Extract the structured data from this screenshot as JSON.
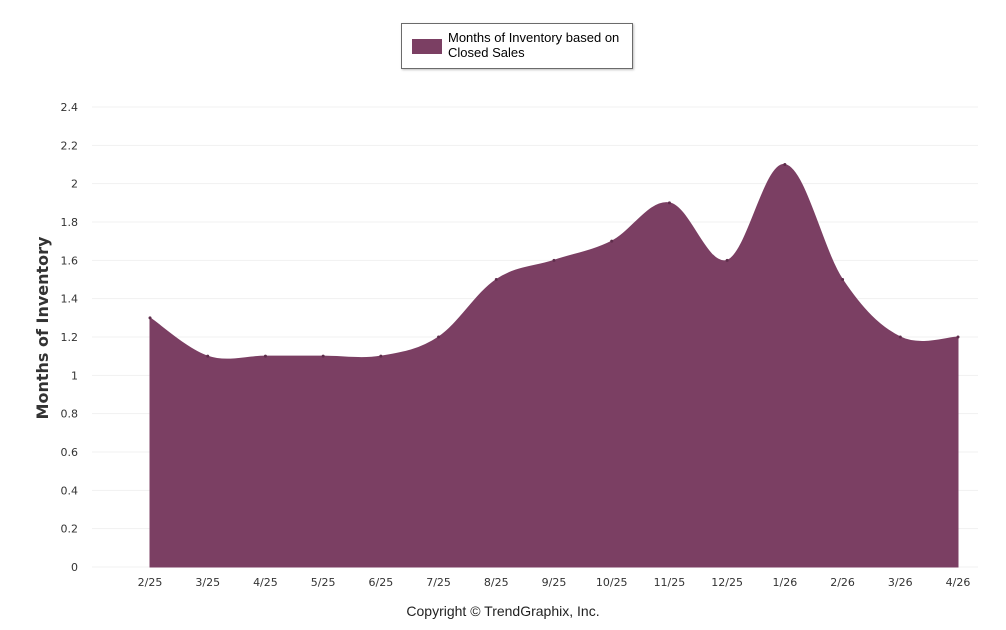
{
  "chart_data": {
    "type": "area",
    "categories": [
      "2/25",
      "3/25",
      "4/25",
      "5/25",
      "6/25",
      "7/25",
      "8/25",
      "9/25",
      "10/25",
      "11/25",
      "12/25",
      "1/26",
      "2/26",
      "3/26",
      "4/26"
    ],
    "series": [
      {
        "name": "Months of Inventory based on Closed Sales",
        "color": "#7b3f63",
        "values": [
          1.3,
          1.1,
          1.1,
          1.1,
          1.1,
          1.2,
          1.5,
          1.6,
          1.7,
          1.9,
          1.6,
          2.1,
          1.5,
          1.2,
          1.2
        ]
      }
    ],
    "ylabel": "Months of Inventory",
    "xlabel": "",
    "ylim": [
      0,
      2.4
    ],
    "yticks": [
      "0",
      "0.2",
      "0.4",
      "0.6",
      "0.8",
      "1",
      "1.2",
      "1.4",
      "1.6",
      "1.8",
      "2",
      "2.2",
      "2.4"
    ],
    "grid": true,
    "legend_position": "top-center"
  },
  "footer": {
    "copyright": "Copyright © TrendGraphix, Inc."
  }
}
